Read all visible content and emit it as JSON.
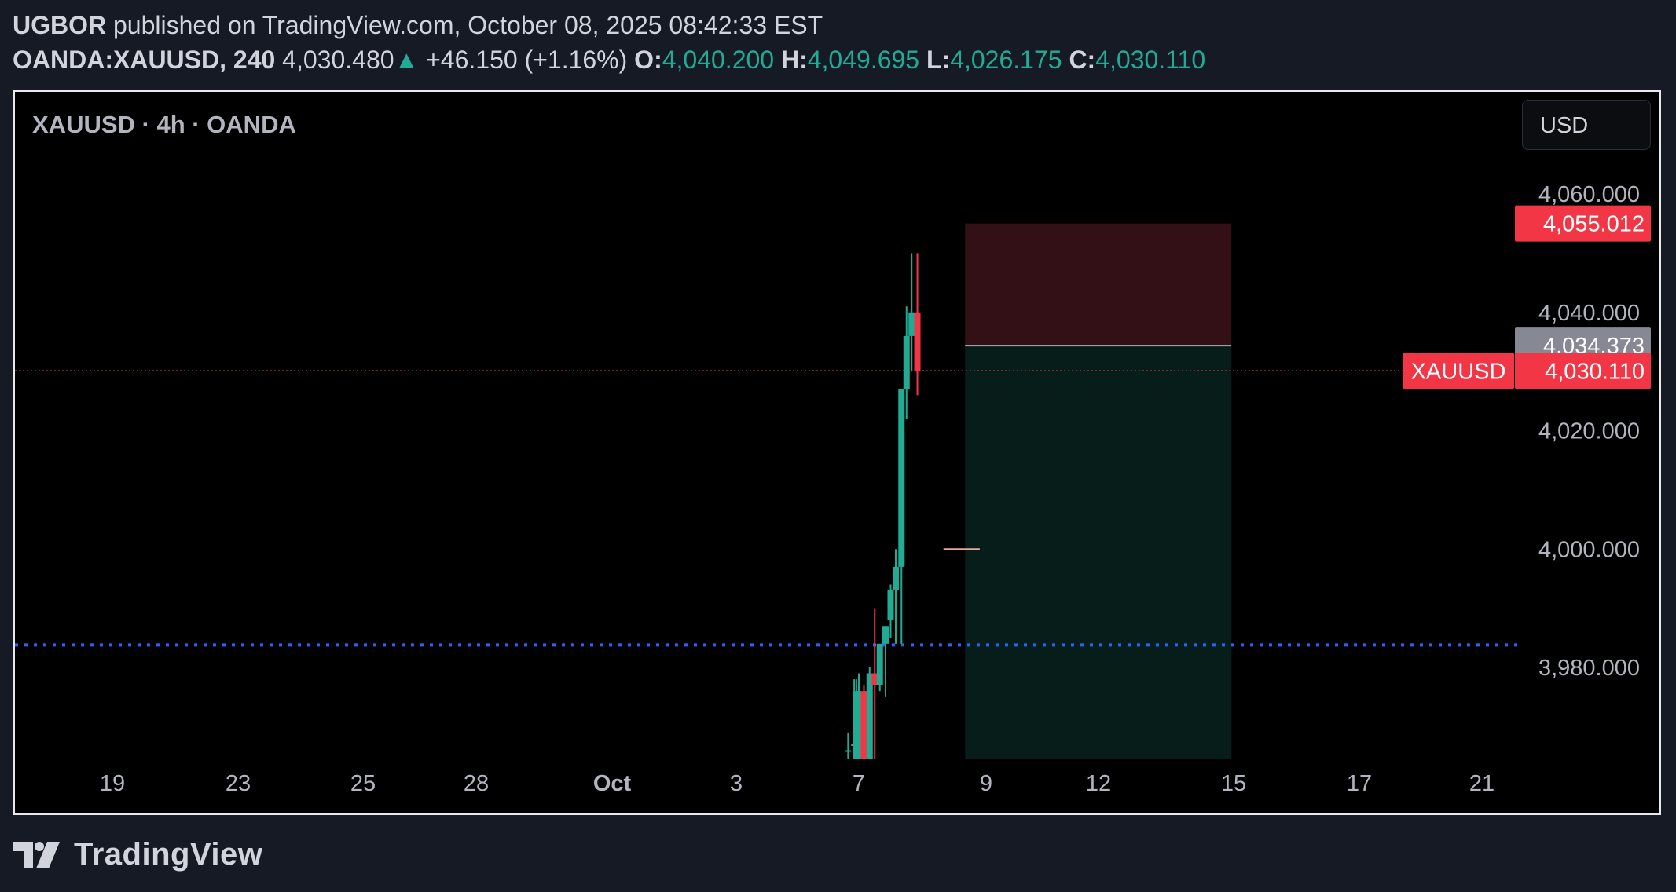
{
  "header": {
    "author": "UGBOR",
    "published_text": " published on TradingView.com, October 08, 2025 08:42:33 EST"
  },
  "quote": {
    "symbol": "OANDA:XAUUSD, 240",
    "last": "4,030.480",
    "arrow": "▲",
    "change": "+46.150 (+1.16%)",
    "o_label": "O:",
    "o": "4,040.200",
    "h_label": "H:",
    "h": "4,049.695",
    "l_label": "L:",
    "l": "4,026.175",
    "c_label": "C:",
    "c": "4,030.110"
  },
  "chart_legend": "XAUUSD · 4h · OANDA",
  "currency_button": "USD",
  "brand": "TradingView",
  "colors": {
    "up": "#22ab94",
    "down": "#f23645",
    "stop_zone": "#321015",
    "target_zone": "#071d1a",
    "blue_line": "#2962ff"
  },
  "chart_data": {
    "type": "candlestick",
    "symbol": "XAUUSD",
    "interval": "4h",
    "ylim": [
      3963,
      4067
    ],
    "y_ticks": [
      "4,060.000",
      "4,040.000",
      "4,020.000",
      "4,000.000",
      "3,980.000"
    ],
    "y_tick_values": [
      4060,
      4040,
      4020,
      4000,
      3980
    ],
    "x_ticks": [
      "19",
      "23",
      "25",
      "28",
      "Oct",
      "3",
      "7",
      "9",
      "12",
      "15",
      "17",
      "21"
    ],
    "x_tick_days": [
      -12,
      -8,
      -6,
      -3,
      0,
      2,
      6,
      8,
      11,
      14,
      16,
      20
    ],
    "price_labels": {
      "stop": "4,055.012",
      "entry": "4,034.373",
      "current_symbol": "XAUUSD",
      "current": "4,030.110"
    },
    "levels": {
      "stop": 4055.012,
      "entry": 4034.373,
      "current": 4030.11,
      "horizontal_support": 3983.8,
      "small_marker": 4000
    },
    "position": {
      "type": "short",
      "start_day": 7.67,
      "end_day": 13.95,
      "stop": 4055.012,
      "entry": 4034.373,
      "target": 3963
    },
    "marker_segment": {
      "start_day": 7.33,
      "end_day": 7.9
    },
    "candles": [
      {
        "t": 5.65,
        "o": 3966,
        "h": 3969,
        "l": 3963,
        "c": 3966
      },
      {
        "t": 5.85,
        "o": 3967,
        "h": 3978,
        "l": 3963,
        "c": 3967
      },
      {
        "t": 5.92,
        "o": 3963,
        "h": 3978,
        "l": 3963,
        "c": 3976
      },
      {
        "t": 6.0,
        "o": 3963,
        "h": 3979,
        "l": 3963,
        "c": 3976
      },
      {
        "t": 6.08,
        "o": 3976,
        "h": 3977,
        "l": 3963,
        "c": 3963
      },
      {
        "t": 6.17,
        "o": 3963,
        "h": 3980,
        "l": 3963,
        "c": 3979
      },
      {
        "t": 6.25,
        "o": 3979,
        "h": 3990,
        "l": 3963,
        "c": 3977
      },
      {
        "t": 6.33,
        "o": 3977,
        "h": 3984,
        "l": 3976,
        "c": 3984
      },
      {
        "t": 6.42,
        "o": 3984,
        "h": 3986,
        "l": 3975,
        "c": 3987
      },
      {
        "t": 6.5,
        "o": 3988,
        "h": 3994,
        "l": 3985,
        "c": 3993
      },
      {
        "t": 6.58,
        "o": 3993,
        "h": 4000,
        "l": 3984,
        "c": 3997
      },
      {
        "t": 6.67,
        "o": 3997,
        "h": 4027,
        "l": 3984,
        "c": 4027
      },
      {
        "t": 6.75,
        "o": 4027,
        "h": 4041,
        "l": 4022,
        "c": 4036
      },
      {
        "t": 6.83,
        "o": 4036,
        "h": 4050,
        "l": 4030,
        "c": 4040
      },
      {
        "t": 6.92,
        "o": 4040,
        "h": 4050,
        "l": 4026,
        "c": 4030
      }
    ]
  }
}
